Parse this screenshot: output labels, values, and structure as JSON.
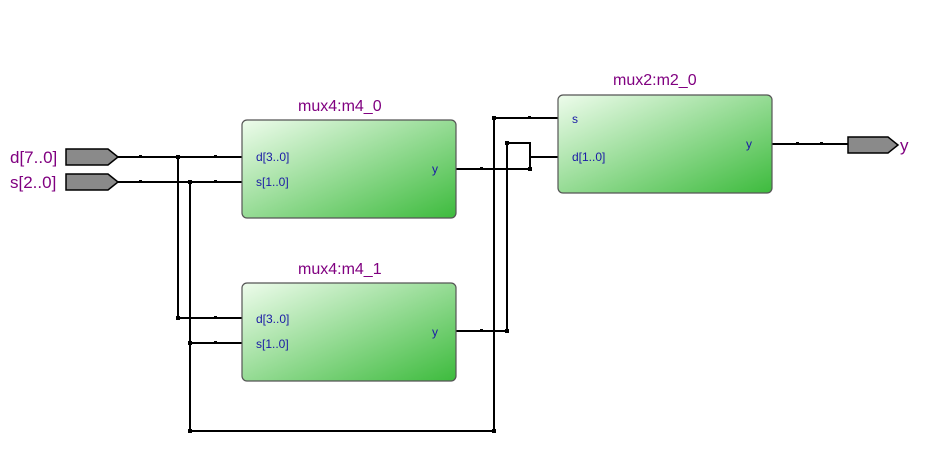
{
  "diagram": {
    "inputs": [
      {
        "id": "in-d",
        "label": "d[7..0]"
      },
      {
        "id": "in-s",
        "label": "s[2..0]"
      }
    ],
    "outputs": [
      {
        "id": "out-y",
        "label": "y"
      }
    ],
    "blocks": [
      {
        "id": "m4_0",
        "title": "mux4:m4_0",
        "ports": {
          "d": "d[3..0]",
          "s": "s[1..0]",
          "y": "y"
        }
      },
      {
        "id": "m4_1",
        "title": "mux4:m4_1",
        "ports": {
          "d": "d[3..0]",
          "s": "s[1..0]",
          "y": "y"
        }
      },
      {
        "id": "m2_0",
        "title": "mux2:m2_0",
        "ports": {
          "s": "s",
          "d": "d[1..0]",
          "y": "y"
        }
      }
    ],
    "colors": {
      "block_fill_light": "#eafbe8",
      "block_fill_dark": "#3dbb3d",
      "title_text": "#800080",
      "port_text": "#1a1aa6",
      "pin_fill": "#8a8a8a"
    }
  }
}
